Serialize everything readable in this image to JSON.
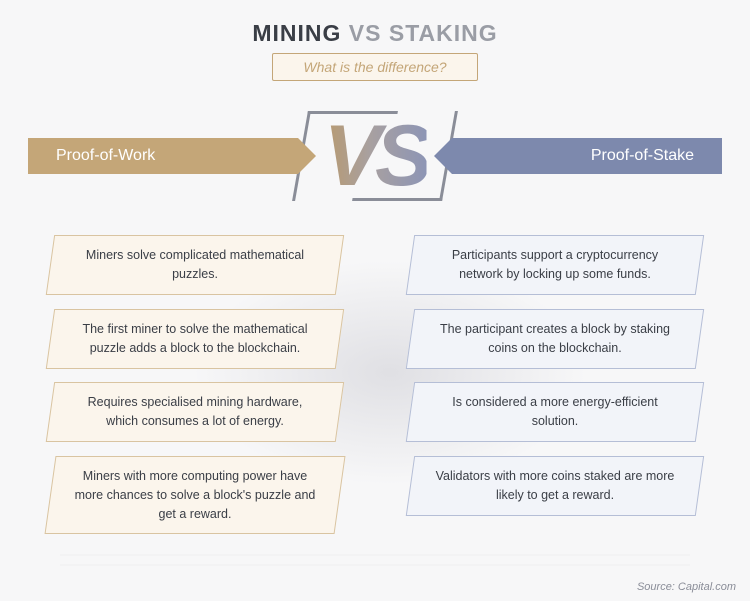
{
  "title": {
    "pre": "MINING ",
    "post": "VS STAKING"
  },
  "subtitle": "What is the difference?",
  "vs": "VS",
  "colors": {
    "left_accent": "#c4a678",
    "left_card_bg": "#fbf5ec",
    "left_card_border": "#d9c4a1",
    "right_accent": "#7d89ad",
    "right_card_bg": "#f2f4f9",
    "right_card_border": "#b5bed6",
    "title_dark": "#3a3e46",
    "title_light": "#9a9da5",
    "bracket": "#8a8d98"
  },
  "left": {
    "name": "Proof-of-Work",
    "items": [
      "Miners solve complicated mathematical puzzles.",
      "The first miner to solve the mathematical puzzle adds a block to the blockchain.",
      "Requires specialised mining hardware, which consumes a lot of energy.",
      "Miners with more computing power have more chances to solve a block's puzzle and get a reward."
    ]
  },
  "right": {
    "name": "Proof-of-Stake",
    "items": [
      "Participants support a cryptocurrency network by locking up some funds.",
      "The participant creates a block by staking coins on the blockchain.",
      "Is considered a more energy-efficient solution.",
      "Validators with more coins staked are more likely to get a reward."
    ]
  },
  "source": "Source: Capital.com",
  "typography": {
    "title_fontsize": 23,
    "subtitle_fontsize": 14,
    "banner_fontsize": 16,
    "card_fontsize": 12.5,
    "vs_fontsize": 86
  }
}
